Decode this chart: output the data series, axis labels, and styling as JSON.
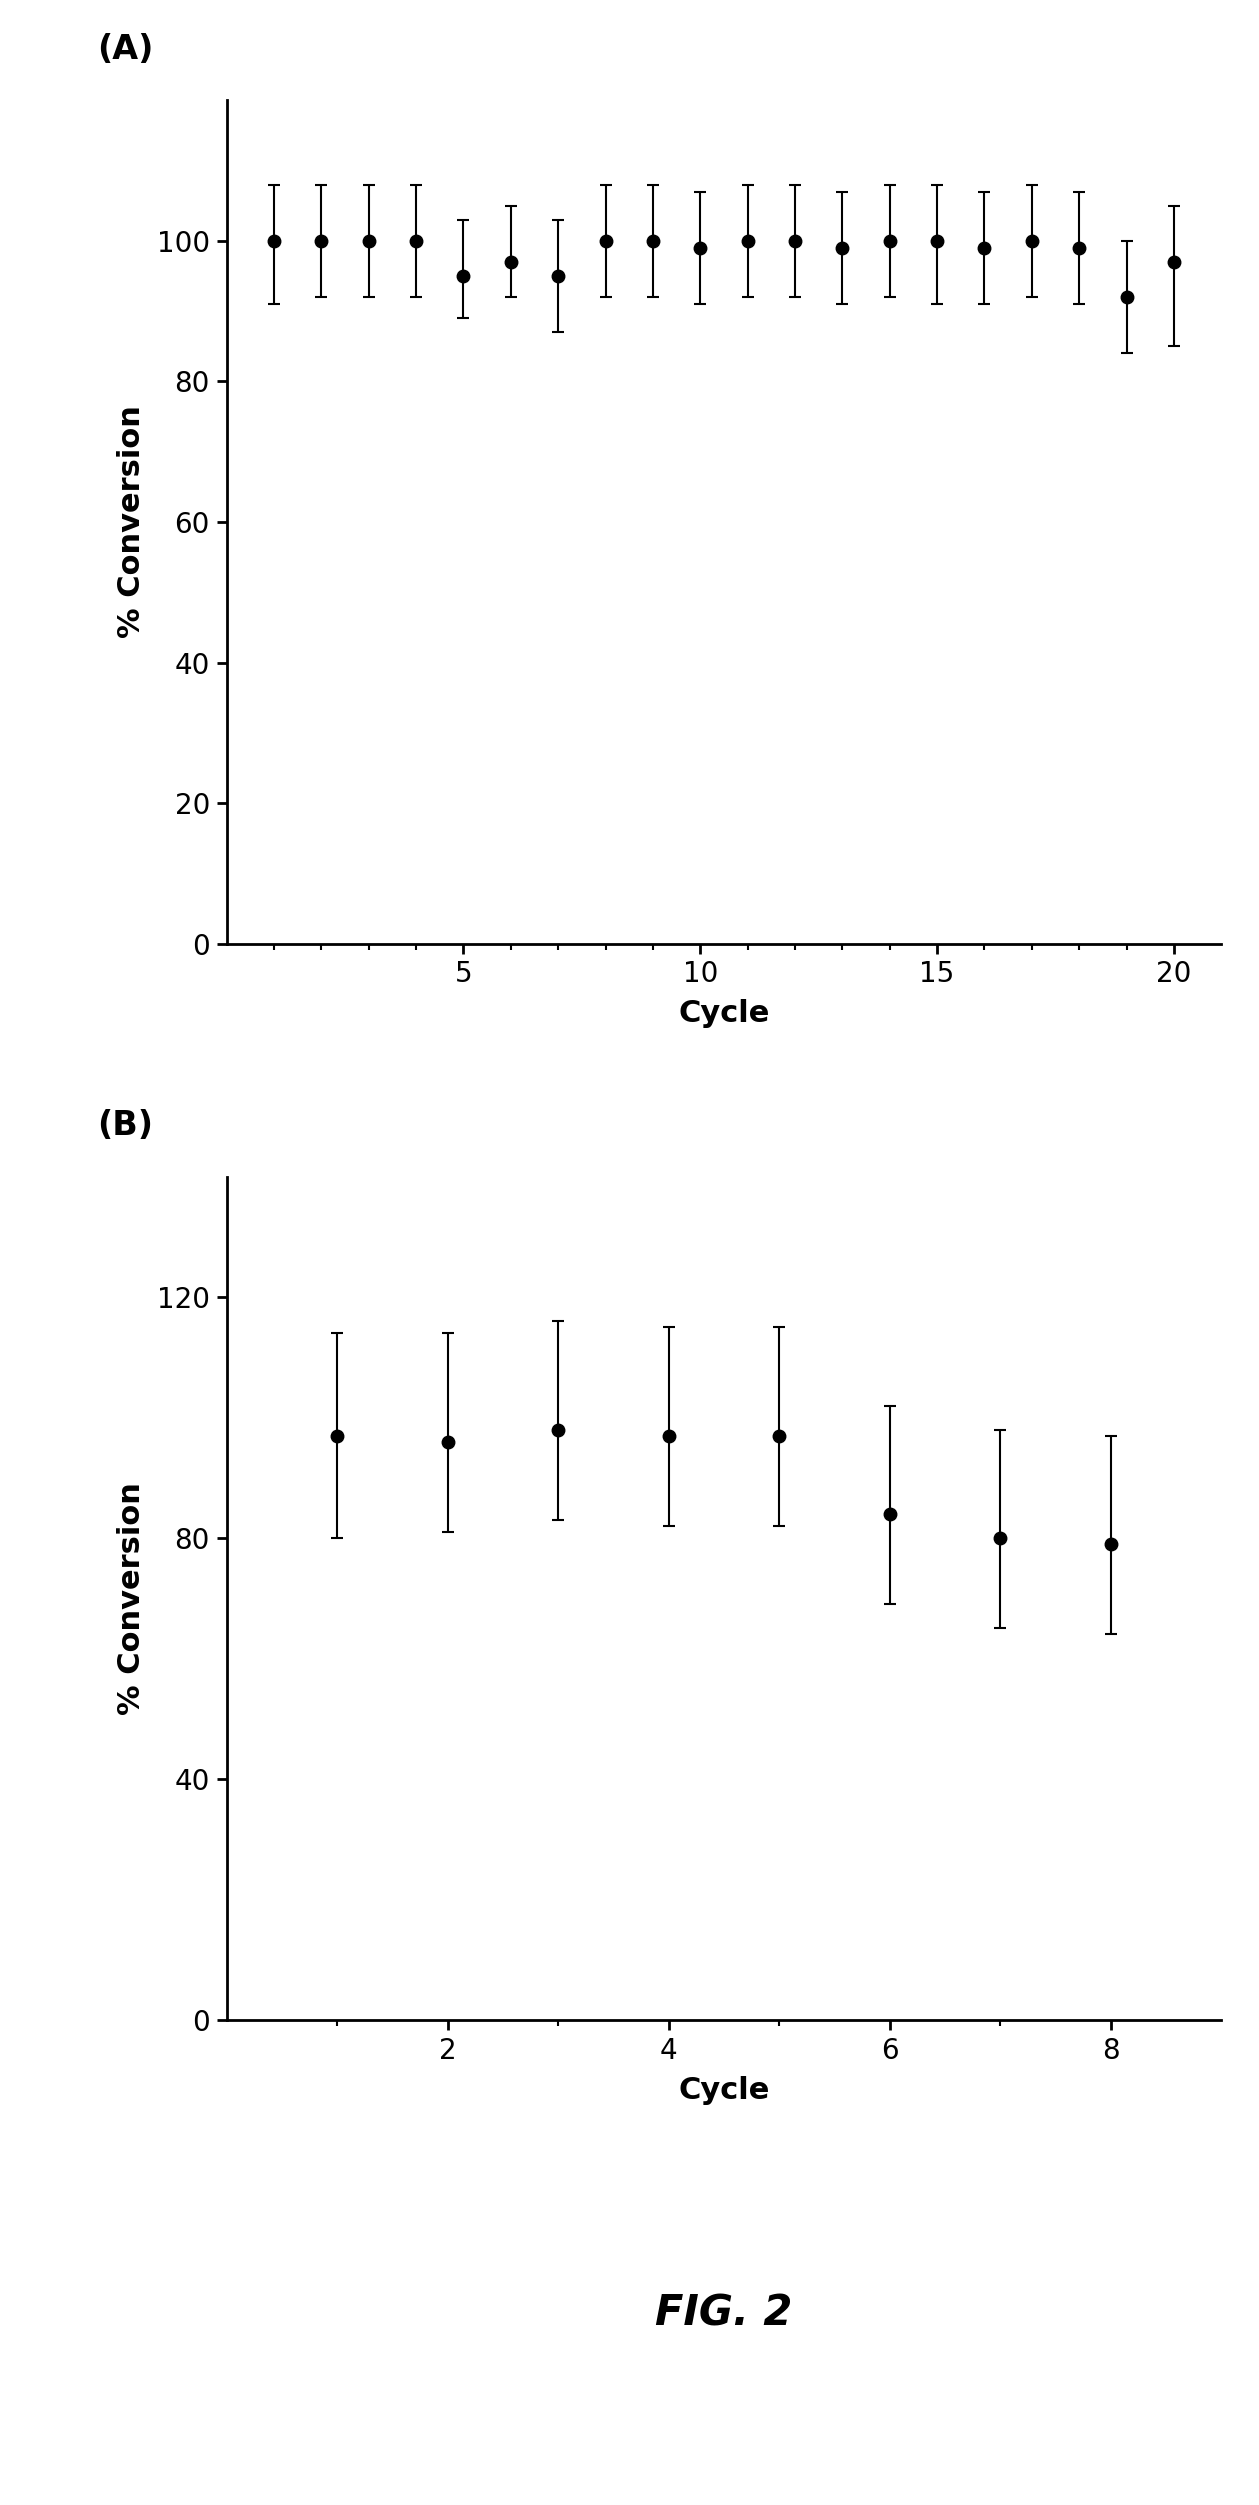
{
  "panel_a": {
    "x": [
      1,
      2,
      3,
      4,
      5,
      6,
      7,
      8,
      9,
      10,
      11,
      12,
      13,
      14,
      15,
      16,
      17,
      18,
      19,
      20
    ],
    "y": [
      100,
      100,
      100,
      100,
      95,
      97,
      95,
      100,
      100,
      99,
      100,
      100,
      99,
      100,
      100,
      99,
      100,
      99,
      92,
      97
    ],
    "yerr_low": [
      9,
      8,
      8,
      8,
      6,
      5,
      8,
      8,
      8,
      8,
      8,
      8,
      8,
      8,
      9,
      8,
      8,
      8,
      8,
      12
    ],
    "yerr_high": [
      8,
      8,
      8,
      8,
      8,
      8,
      8,
      8,
      8,
      8,
      8,
      8,
      8,
      8,
      8,
      8,
      8,
      8,
      8,
      8
    ],
    "xlabel": "Cycle",
    "ylabel": "% Conversion",
    "xlim": [
      0,
      21
    ],
    "ylim": [
      0,
      120
    ],
    "yticks": [
      0,
      20,
      40,
      60,
      80,
      100
    ],
    "xticks": [
      5,
      10,
      15,
      20
    ],
    "minor_xticks": [
      1,
      2,
      3,
      4,
      5,
      6,
      7,
      8,
      9,
      10,
      11,
      12,
      13,
      14,
      15,
      16,
      17,
      18,
      19,
      20
    ],
    "label": "(A)"
  },
  "panel_b": {
    "x": [
      1,
      2,
      3,
      4,
      5,
      6,
      7,
      8
    ],
    "y": [
      97,
      96,
      98,
      97,
      97,
      84,
      80,
      79
    ],
    "yerr_low": [
      17,
      15,
      15,
      15,
      15,
      15,
      15,
      15
    ],
    "yerr_high": [
      17,
      18,
      18,
      18,
      18,
      18,
      18,
      18
    ],
    "xlabel": "Cycle",
    "ylabel": "% Conversion",
    "xlim": [
      0,
      9
    ],
    "ylim": [
      0,
      140
    ],
    "yticks": [
      0,
      40,
      80,
      120
    ],
    "yticklabels": [
      "0",
      "40",
      "80",
      "120"
    ],
    "xticks": [
      2,
      4,
      6,
      8
    ],
    "minor_xticks": [
      1,
      2,
      3,
      4,
      5,
      6,
      7,
      8
    ],
    "label": "(B)"
  },
  "fig_label": "FIG. 2",
  "bg_color": "#ffffff",
  "marker_color": "#000000",
  "marker_size": 9,
  "elinewidth": 1.5,
  "capsize": 4,
  "capthick": 1.5
}
